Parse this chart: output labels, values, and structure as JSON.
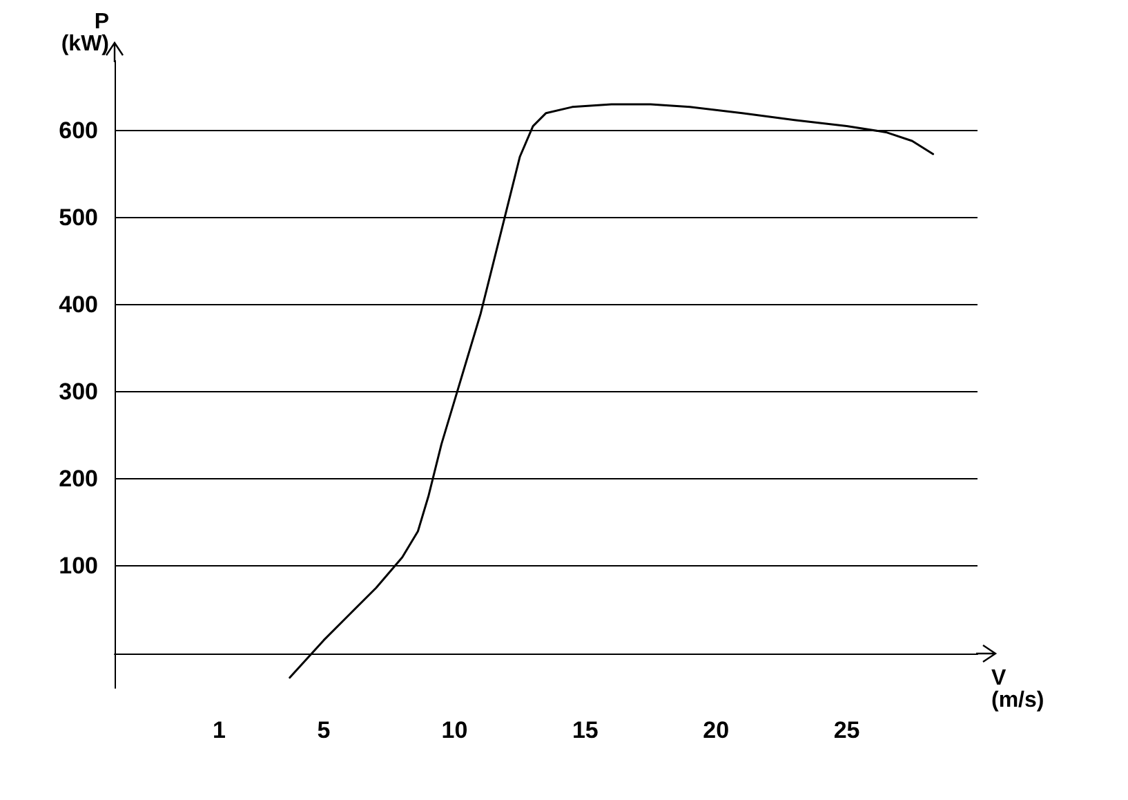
{
  "chart_data": {
    "type": "line",
    "xlabel": "V\n(m/s)",
    "ylabel": "P\n(kW)",
    "x": [
      3.7,
      5,
      6,
      7,
      8,
      8.6,
      9,
      9.5,
      10,
      10.5,
      11,
      11.5,
      12,
      12.5,
      13,
      13.5,
      14.5,
      16,
      17.5,
      19,
      21,
      23,
      25,
      26.5,
      27.5,
      28.3
    ],
    "series": [
      {
        "color": "#000000",
        "values": [
          -28,
          15,
          45,
          75,
          110,
          140,
          180,
          240,
          290,
          340,
          390,
          450,
          510,
          570,
          605,
          620,
          627,
          630,
          630,
          627,
          620,
          612,
          605,
          598,
          588,
          573
        ]
      }
    ],
    "xlim": [
      -3,
      30
    ],
    "ylim": [
      -40,
      680
    ],
    "xticks": [
      1,
      5,
      10,
      15,
      20,
      25
    ],
    "yticks": [
      100,
      200,
      300,
      400,
      500,
      600
    ],
    "grid": "y",
    "marker": "none",
    "line_style": "solid"
  }
}
